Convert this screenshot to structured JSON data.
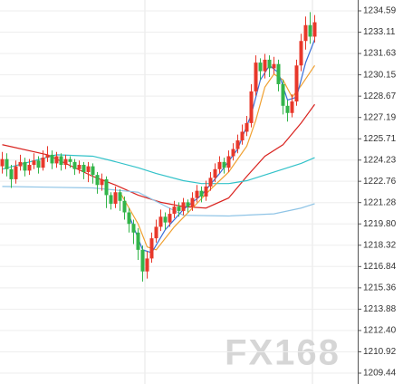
{
  "chart_data": {
    "type": "candlestick",
    "up_color": "#e8382b",
    "down_color": "#33b54a",
    "ylim": [
      1209.44,
      1234.59
    ],
    "yticks": [
      1234.59,
      1233.11,
      1231.63,
      1230.15,
      1228.67,
      1227.19,
      1225.71,
      1224.23,
      1222.76,
      1221.28,
      {
        "value": 1219.8,
        "label": "1219.80"
      },
      1218.32,
      1216.84,
      1215.36,
      1213.88,
      {
        "value": 1212.4,
        "label": "1212.40"
      },
      1210.92,
      1209.44
    ],
    "grid": true,
    "open": [
      1223.8,
      1224.3,
      1223.6,
      1222.9,
      1223.8,
      1224.1,
      1223.5,
      1223.9,
      1224.2,
      1223.7,
      1224.4,
      1224.6,
      1224.0,
      1224.5,
      1223.9,
      1224.3,
      1224.1,
      1223.6,
      1223.9,
      1223.4,
      1223.8,
      1223.2,
      1222.5,
      1222.9,
      1221.8,
      1221.2,
      1222.0,
      1221.4,
      1220.6,
      1219.8,
      1219.2,
      1218.0,
      1216.5,
      1217.4,
      1218.8,
      1219.6,
      1220.3,
      1219.9,
      1220.5,
      1221.0,
      1220.7,
      1221.3,
      1221.0,
      1221.6,
      1222.1,
      1221.7,
      1222.4,
      1223.0,
      1223.6,
      1224.1,
      1223.7,
      1224.5,
      1225.0,
      1225.6,
      1226.2,
      1226.8,
      1229.0,
      1231.0,
      1230.4,
      1231.2,
      1230.6,
      1230.9,
      1229.5,
      1228.0,
      1227.5,
      1228.3,
      1230.8,
      1232.5,
      1233.6,
      1232.8
    ],
    "high": [
      1224.8,
      1224.7,
      1223.9,
      1224.2,
      1224.6,
      1224.4,
      1224.3,
      1224.7,
      1224.5,
      1224.9,
      1225.2,
      1224.9,
      1224.8,
      1224.7,
      1224.6,
      1224.5,
      1224.3,
      1224.2,
      1224.1,
      1224.1,
      1224.0,
      1223.4,
      1223.3,
      1223.1,
      1222.0,
      1222.4,
      1222.2,
      1221.7,
      1220.9,
      1220.1,
      1219.5,
      1218.3,
      1217.9,
      1219.2,
      1220.1,
      1220.8,
      1220.6,
      1220.9,
      1221.4,
      1221.3,
      1221.6,
      1221.5,
      1222.0,
      1222.5,
      1222.4,
      1222.8,
      1223.4,
      1224.0,
      1224.5,
      1224.4,
      1224.9,
      1225.4,
      1226.0,
      1226.7,
      1227.3,
      1229.5,
      1231.5,
      1231.3,
      1231.6,
      1231.5,
      1231.4,
      1231.2,
      1229.8,
      1228.4,
      1228.8,
      1231.2,
      1233.0,
      1234.2,
      1234.5,
      1234.3
    ],
    "low": [
      1223.3,
      1223.1,
      1222.3,
      1222.6,
      1223.5,
      1223.1,
      1223.2,
      1223.6,
      1223.3,
      1223.5,
      1224.1,
      1223.6,
      1223.7,
      1223.5,
      1223.6,
      1223.7,
      1223.2,
      1223.3,
      1222.9,
      1222.7,
      1222.6,
      1221.9,
      1222.1,
      1220.9,
      1220.8,
      1220.9,
      1220.7,
      1220.1,
      1219.2,
      1218.4,
      1217.3,
      1215.8,
      1216.0,
      1217.1,
      1218.5,
      1219.3,
      1219.4,
      1219.6,
      1220.2,
      1220.3,
      1220.4,
      1220.6,
      1220.7,
      1221.3,
      1221.3,
      1221.4,
      1222.1,
      1222.7,
      1223.3,
      1223.3,
      1223.4,
      1224.2,
      1224.7,
      1225.3,
      1225.9,
      1226.5,
      1228.7,
      1229.8,
      1229.9,
      1230.0,
      1230.2,
      1229.0,
      1227.4,
      1226.9,
      1227.2,
      1228.0,
      1230.4,
      1231.9,
      1232.3,
      1232.4
    ],
    "close": [
      1224.3,
      1223.6,
      1222.9,
      1223.8,
      1224.1,
      1223.5,
      1223.9,
      1224.2,
      1223.7,
      1224.4,
      1224.6,
      1224.0,
      1224.5,
      1223.9,
      1224.3,
      1224.1,
      1223.6,
      1223.9,
      1223.4,
      1223.8,
      1223.2,
      1222.5,
      1222.9,
      1221.8,
      1221.2,
      1222.0,
      1221.4,
      1220.6,
      1219.8,
      1219.2,
      1218.0,
      1216.5,
      1217.4,
      1218.8,
      1219.6,
      1220.3,
      1219.9,
      1220.5,
      1221.0,
      1220.7,
      1221.3,
      1221.0,
      1221.6,
      1222.1,
      1221.7,
      1222.4,
      1223.0,
      1223.6,
      1224.1,
      1223.7,
      1224.5,
      1225.0,
      1225.6,
      1226.2,
      1226.8,
      1229.0,
      1231.0,
      1230.4,
      1231.2,
      1230.6,
      1230.9,
      1229.5,
      1228.0,
      1227.5,
      1228.3,
      1230.8,
      1232.5,
      1233.6,
      1232.8,
      1233.8
    ],
    "lines": [
      {
        "color": "#d9231f",
        "x": [
          0,
          10,
          20,
          25,
          30,
          35,
          40,
          45,
          50,
          54,
          58,
          62,
          66,
          69
        ],
        "values": [
          1225.3,
          1224.6,
          1223.1,
          1222.5,
          1221.8,
          1221.3,
          1221.0,
          1220.9,
          1221.6,
          1223.1,
          1224.5,
          1225.3,
          1226.8,
          1228.1
        ]
      },
      {
        "color": "#32c2c9",
        "x": [
          0,
          12,
          20,
          24,
          30,
          34,
          40,
          44,
          50,
          54,
          58,
          62,
          66,
          69
        ],
        "values": [
          1223.6,
          1224.6,
          1224.5,
          1224.2,
          1223.7,
          1223.3,
          1222.8,
          1222.6,
          1222.6,
          1222.8,
          1223.2,
          1223.6,
          1224.0,
          1224.4
        ]
      },
      {
        "color": "#8fc4e6",
        "x": [
          0,
          10,
          20,
          30,
          40,
          50,
          60,
          66,
          69
        ],
        "values": [
          1222.4,
          1222.35,
          1222.3,
          1222.0,
          1220.4,
          1220.35,
          1220.5,
          1220.9,
          1221.2
        ]
      },
      {
        "color": "#f0a030",
        "x": [
          26,
          30,
          32,
          34,
          38,
          42,
          46,
          50,
          54,
          56,
          58,
          60,
          62,
          64,
          66,
          69
        ],
        "values": [
          1222.0,
          1219.8,
          1218.2,
          1218.0,
          1219.6,
          1220.9,
          1222.2,
          1223.4,
          1225.2,
          1227.0,
          1229.3,
          1230.2,
          1229.8,
          1228.6,
          1229.4,
          1230.8
        ]
      },
      {
        "color": "#3a6fd8",
        "x": [
          28,
          31,
          33,
          36,
          40,
          44,
          48,
          52,
          55,
          57,
          59,
          61,
          63,
          65,
          67,
          69
        ],
        "values": [
          1220.4,
          1218.0,
          1217.8,
          1219.4,
          1220.8,
          1221.8,
          1223.3,
          1225.0,
          1227.4,
          1229.8,
          1230.8,
          1230.3,
          1228.4,
          1228.6,
          1231.0,
          1232.6
        ]
      }
    ],
    "watermark": "FX168"
  }
}
